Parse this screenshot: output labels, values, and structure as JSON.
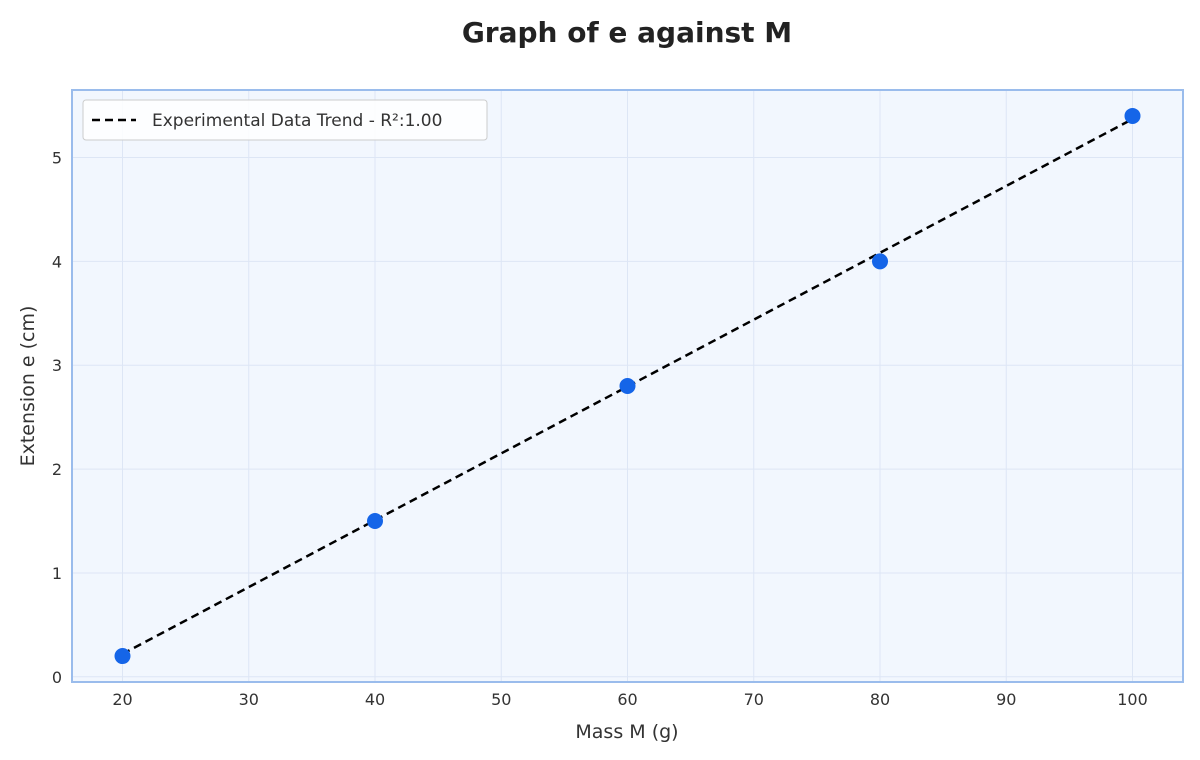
{
  "chart_data": {
    "type": "scatter",
    "title": "Graph of e against M",
    "xlabel": "Mass M (g)",
    "ylabel": "Extension e (cm)",
    "xlim": [
      16,
      104
    ],
    "ylim": [
      -0.05,
      5.65
    ],
    "x_ticks": [
      20,
      30,
      40,
      50,
      60,
      70,
      80,
      90,
      100
    ],
    "y_ticks": [
      0,
      1,
      2,
      3,
      4,
      5
    ],
    "grid": true,
    "legend_position": "top-left",
    "series": [
      {
        "kind": "points",
        "x": [
          20,
          40,
          60,
          80,
          100
        ],
        "y": [
          0.2,
          1.5,
          2.8,
          4.0,
          5.4
        ],
        "color": "#1565e8"
      },
      {
        "kind": "trend-line",
        "name": "Experimental Data Trend - R²:1.00",
        "x": [
          20,
          100
        ],
        "y": [
          0.22,
          5.37
        ],
        "color": "#000000",
        "dashed": true
      }
    ],
    "colors": {
      "plot_background": "#f2f7fe",
      "plot_border": "#9abcec",
      "grid": "#dde6f5"
    }
  }
}
